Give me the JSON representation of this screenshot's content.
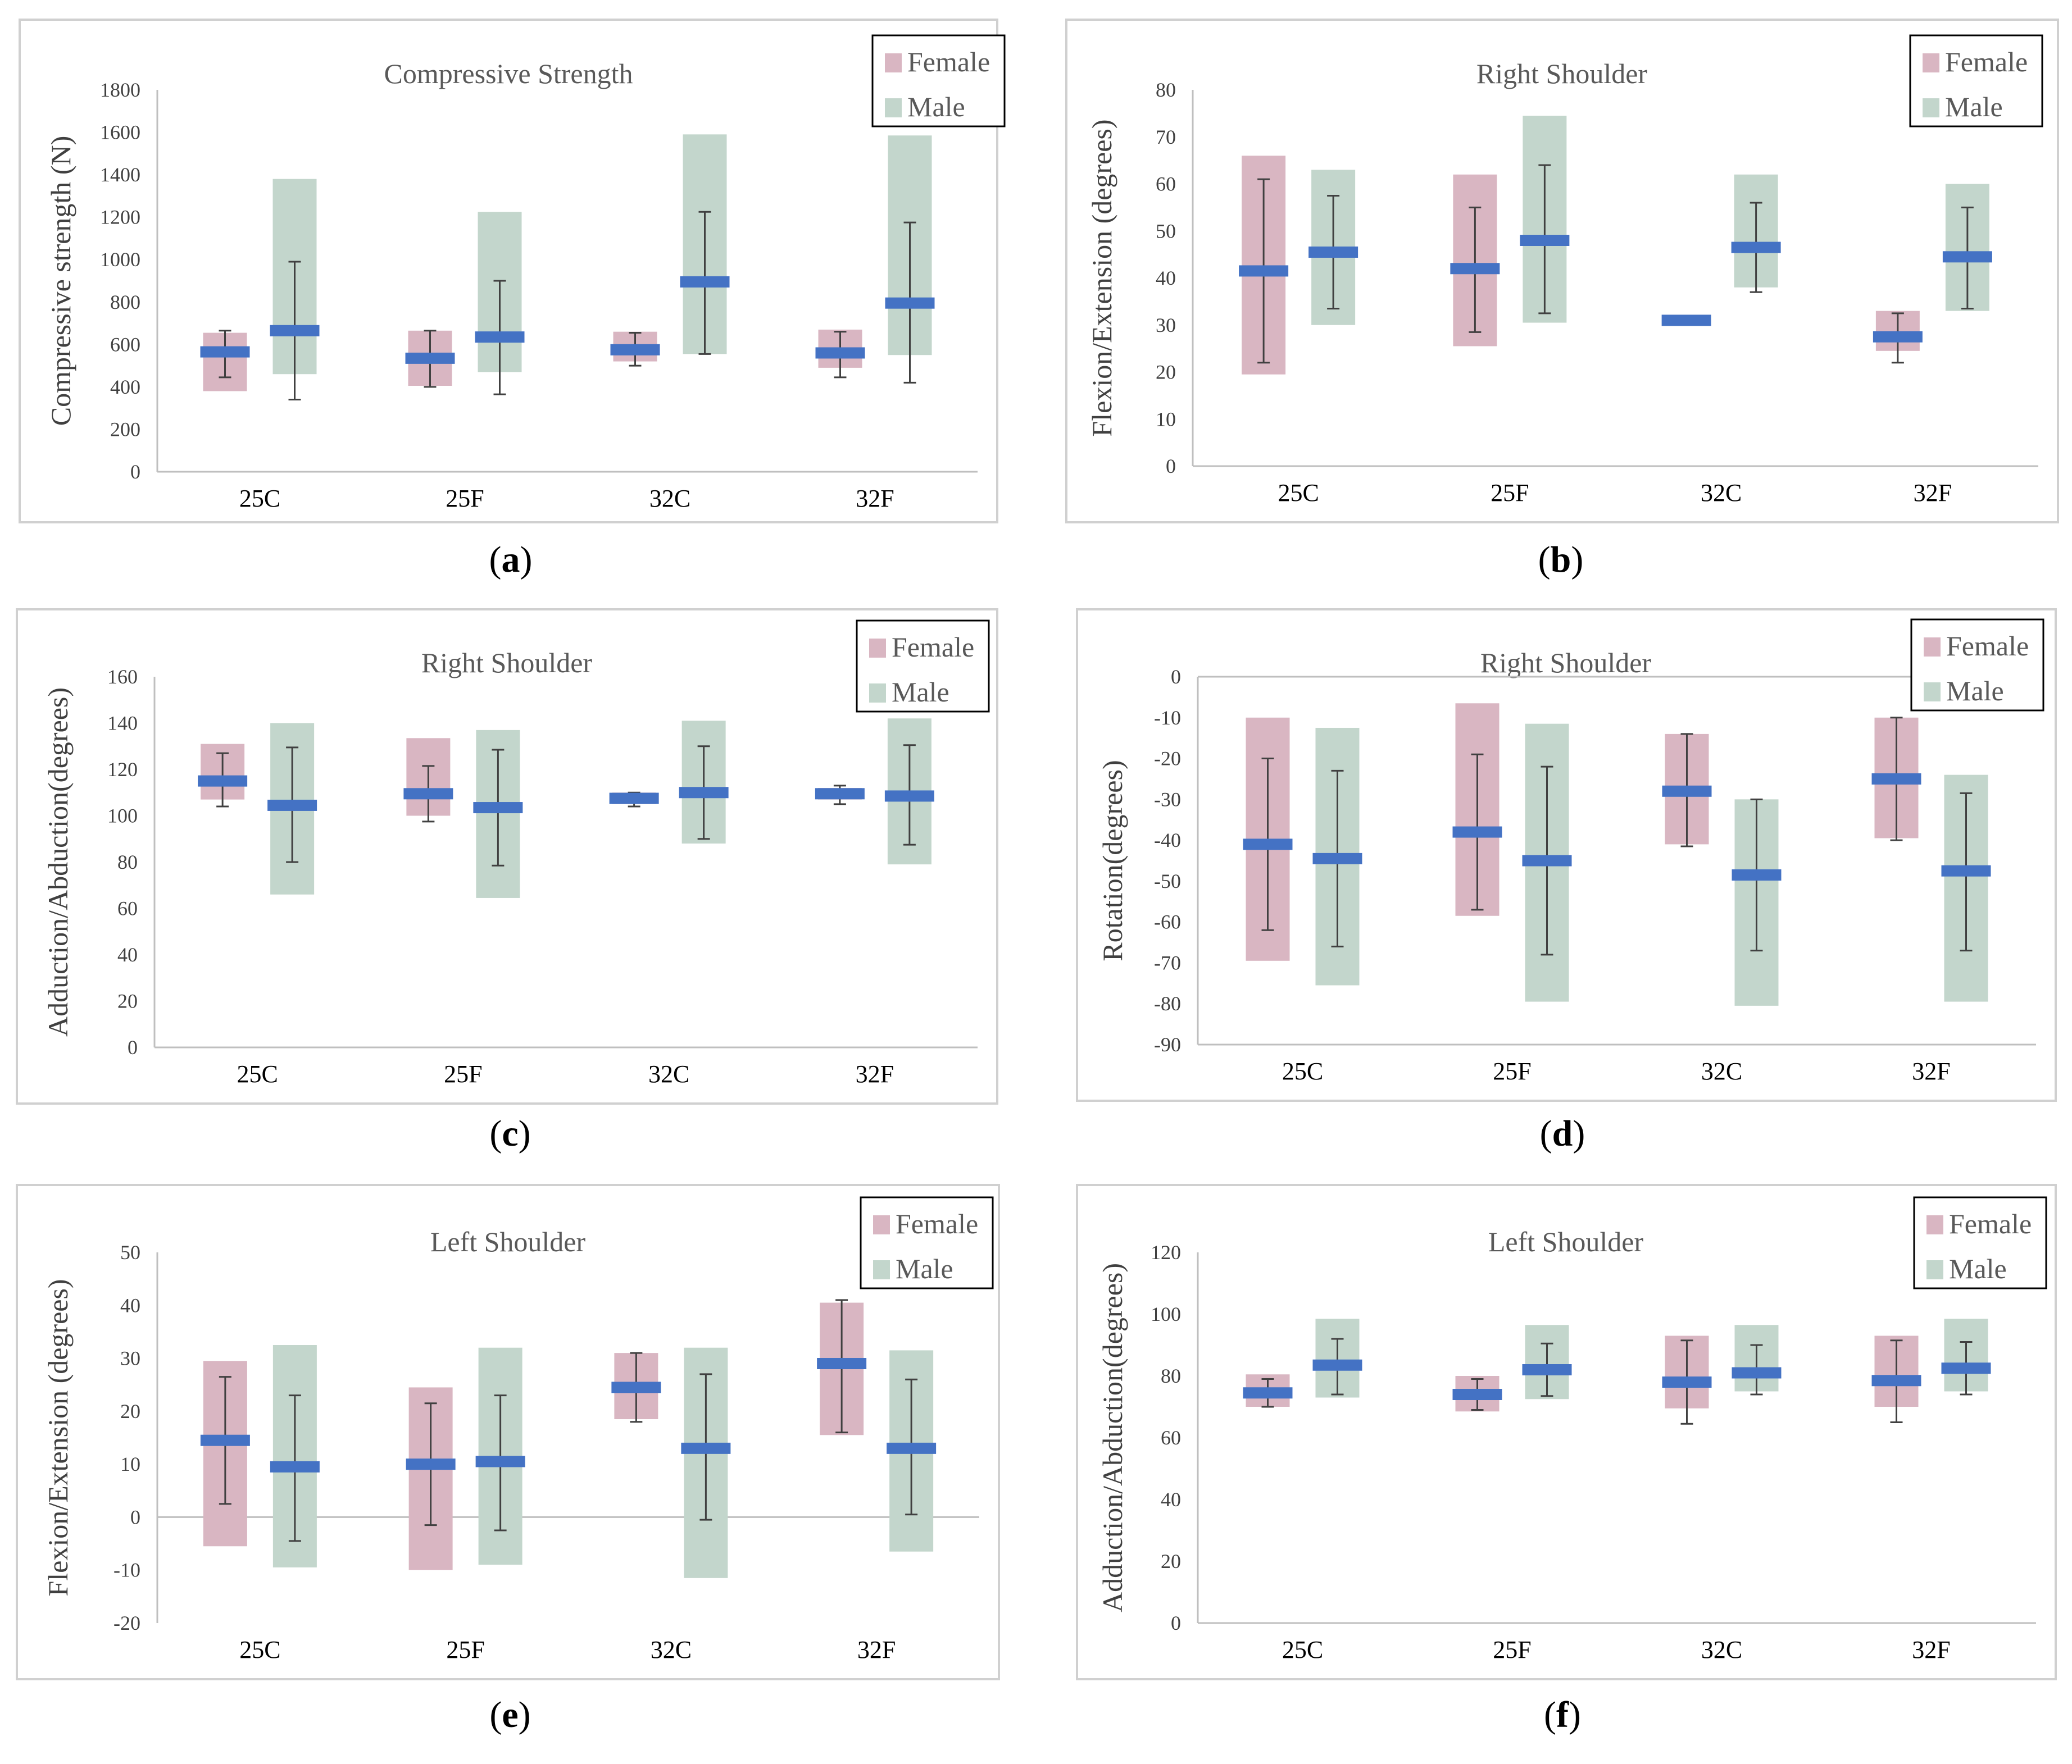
{
  "figure": {
    "colors": {
      "female": "#d9b6c2",
      "male": "#c3d6cc",
      "median": "#4472c4",
      "whisker": "#404040",
      "axis": "#bfbfbf",
      "frame": "#d0d0d0"
    },
    "legend": {
      "female": "Female",
      "male": "Male"
    }
  },
  "chart_data": [
    {
      "id": "a",
      "caption": "a",
      "type": "box-range",
      "title": "Compressive Strength",
      "ylabel": "Compressive strength (N)",
      "ylim": [
        0,
        1800
      ],
      "yticks": [
        0,
        200,
        400,
        600,
        800,
        1000,
        1200,
        1400,
        1600,
        1800
      ],
      "categories": [
        "25C",
        "25F",
        "32C",
        "32F"
      ],
      "series": [
        {
          "name": "Female",
          "color": "female",
          "values": [
            {
              "low": 380,
              "high": 655,
              "median": 565,
              "wlow": 445,
              "whigh": 665
            },
            {
              "low": 405,
              "high": 665,
              "median": 535,
              "wlow": 400,
              "whigh": 665
            },
            {
              "low": 520,
              "high": 660,
              "median": 575,
              "wlow": 500,
              "whigh": 655
            },
            {
              "low": 490,
              "high": 670,
              "median": 560,
              "wlow": 445,
              "whigh": 660
            }
          ]
        },
        {
          "name": "Male",
          "color": "male",
          "values": [
            {
              "low": 460,
              "high": 1380,
              "median": 665,
              "wlow": 340,
              "whigh": 990
            },
            {
              "low": 470,
              "high": 1225,
              "median": 635,
              "wlow": 365,
              "whigh": 900
            },
            {
              "low": 555,
              "high": 1590,
              "median": 895,
              "wlow": 555,
              "whigh": 1225
            },
            {
              "low": 550,
              "high": 1585,
              "median": 795,
              "wlow": 420,
              "whigh": 1175
            }
          ]
        }
      ]
    },
    {
      "id": "b",
      "caption": "b",
      "type": "box-range",
      "title": "Right Shoulder",
      "ylabel": "Flexion/Extension (degrees)",
      "ylim": [
        0,
        80
      ],
      "yticks": [
        0,
        10,
        20,
        30,
        40,
        50,
        60,
        70,
        80
      ],
      "categories": [
        "25C",
        "25F",
        "32C",
        "32F"
      ],
      "series": [
        {
          "name": "Female",
          "color": "female",
          "values": [
            {
              "low": 19.5,
              "high": 66,
              "median": 41.5,
              "wlow": 22,
              "whigh": 61
            },
            {
              "low": 25.5,
              "high": 62,
              "median": 42,
              "wlow": 28.5,
              "whigh": 55
            },
            {
              "low": 30.5,
              "high": 31.5,
              "median": 31,
              "wlow": 31,
              "whigh": 31
            },
            {
              "low": 24.5,
              "high": 33,
              "median": 27.5,
              "wlow": 22,
              "whigh": 32.5
            }
          ]
        },
        {
          "name": "Male",
          "color": "male",
          "values": [
            {
              "low": 30,
              "high": 63,
              "median": 45.5,
              "wlow": 33.5,
              "whigh": 57.5
            },
            {
              "low": 30.5,
              "high": 74.5,
              "median": 48,
              "wlow": 32.5,
              "whigh": 64
            },
            {
              "low": 38,
              "high": 62,
              "median": 46.5,
              "wlow": 37,
              "whigh": 56
            },
            {
              "low": 33,
              "high": 60,
              "median": 44.5,
              "wlow": 33.5,
              "whigh": 55
            }
          ]
        }
      ]
    },
    {
      "id": "c",
      "caption": "c",
      "type": "box-range",
      "title": "Right Shoulder",
      "ylabel": "Adduction/Abduction(degrees)",
      "ylim": [
        0,
        160
      ],
      "yticks": [
        0,
        20,
        40,
        60,
        80,
        100,
        120,
        140,
        160
      ],
      "categories": [
        "25C",
        "25F",
        "32C",
        "32F"
      ],
      "series": [
        {
          "name": "Female",
          "color": "female",
          "values": [
            {
              "low": 107,
              "high": 131,
              "median": 115,
              "wlow": 104,
              "whigh": 127
            },
            {
              "low": 100,
              "high": 133.5,
              "median": 109.5,
              "wlow": 97.5,
              "whigh": 121.5
            },
            {
              "low": 105,
              "high": 110,
              "median": 107.5,
              "wlow": 104,
              "whigh": 110
            },
            {
              "low": 107,
              "high": 112,
              "median": 109.5,
              "wlow": 105,
              "whigh": 113
            }
          ]
        },
        {
          "name": "Male",
          "color": "male",
          "values": [
            {
              "low": 66,
              "high": 140,
              "median": 104.5,
              "wlow": 80,
              "whigh": 129.5
            },
            {
              "low": 64.5,
              "high": 137,
              "median": 103.5,
              "wlow": 78.5,
              "whigh": 128.5
            },
            {
              "low": 88,
              "high": 141,
              "median": 110,
              "wlow": 90,
              "whigh": 130
            },
            {
              "low": 79,
              "high": 142,
              "median": 108.5,
              "wlow": 87.5,
              "whigh": 130.5
            }
          ]
        }
      ]
    },
    {
      "id": "d",
      "caption": "d",
      "type": "box-range",
      "title": "Right Shoulder",
      "ylabel": "Rotation(degrees)",
      "ylim": [
        -90,
        0
      ],
      "yticks": [
        -90,
        -80,
        -70,
        -60,
        -50,
        -40,
        -30,
        -20,
        -10,
        0
      ],
      "categories": [
        "25C",
        "25F",
        "32C",
        "32F"
      ],
      "series": [
        {
          "name": "Female",
          "color": "female",
          "values": [
            {
              "low": -69.5,
              "high": -10,
              "median": -41,
              "wlow": -62,
              "whigh": -20
            },
            {
              "low": -58.5,
              "high": -6.5,
              "median": -38,
              "wlow": -57,
              "whigh": -19
            },
            {
              "low": -41,
              "high": -14,
              "median": -28,
              "wlow": -41.5,
              "whigh": -14
            },
            {
              "low": -39.5,
              "high": -10,
              "median": -25,
              "wlow": -40,
              "whigh": -10
            }
          ]
        },
        {
          "name": "Male",
          "color": "male",
          "values": [
            {
              "low": -75.5,
              "high": -12.5,
              "median": -44.5,
              "wlow": -66,
              "whigh": -23
            },
            {
              "low": -79.5,
              "high": -11.5,
              "median": -45,
              "wlow": -68,
              "whigh": -22
            },
            {
              "low": -80.5,
              "high": -30,
              "median": -48.5,
              "wlow": -67,
              "whigh": -30
            },
            {
              "low": -79.5,
              "high": -24,
              "median": -47.5,
              "wlow": -67,
              "whigh": -28.5
            }
          ]
        }
      ]
    },
    {
      "id": "e",
      "caption": "e",
      "type": "box-range",
      "title": "Left Shoulder",
      "ylabel": "Flexion/Extension (degrees)",
      "ylim": [
        -20,
        50
      ],
      "yticks": [
        -20,
        -10,
        0,
        10,
        20,
        30,
        40,
        50
      ],
      "categories": [
        "25C",
        "25F",
        "32C",
        "32F"
      ],
      "series": [
        {
          "name": "Female",
          "color": "female",
          "values": [
            {
              "low": -5.5,
              "high": 29.5,
              "median": 14.5,
              "wlow": 2.5,
              "whigh": 26.5
            },
            {
              "low": -10,
              "high": 24.5,
              "median": 10,
              "wlow": -1.5,
              "whigh": 21.5
            },
            {
              "low": 18.5,
              "high": 31,
              "median": 24.5,
              "wlow": 18,
              "whigh": 31
            },
            {
              "low": 15.5,
              "high": 40.5,
              "median": 29,
              "wlow": 16,
              "whigh": 41
            }
          ]
        },
        {
          "name": "Male",
          "color": "male",
          "values": [
            {
              "low": -9.5,
              "high": 32.5,
              "median": 9.5,
              "wlow": -4.5,
              "whigh": 23
            },
            {
              "low": -9,
              "high": 32,
              "median": 10.5,
              "wlow": -2.5,
              "whigh": 23
            },
            {
              "low": -11.5,
              "high": 32,
              "median": 13,
              "wlow": -0.5,
              "whigh": 27
            },
            {
              "low": -6.5,
              "high": 31.5,
              "median": 13,
              "wlow": 0.5,
              "whigh": 26
            }
          ]
        }
      ]
    },
    {
      "id": "f",
      "caption": "f",
      "type": "box-range",
      "title": "Left Shoulder",
      "ylabel": "Adduction/Abduction(degrees)",
      "ylim": [
        0,
        120
      ],
      "yticks": [
        0,
        20,
        40,
        60,
        80,
        100,
        120
      ],
      "categories": [
        "25C",
        "25F",
        "32C",
        "32F"
      ],
      "series": [
        {
          "name": "Female",
          "color": "female",
          "values": [
            {
              "low": 70,
              "high": 80.5,
              "median": 74.5,
              "wlow": 70,
              "whigh": 79
            },
            {
              "low": 68.5,
              "high": 80,
              "median": 74,
              "wlow": 69,
              "whigh": 79
            },
            {
              "low": 69.5,
              "high": 93,
              "median": 78,
              "wlow": 64.5,
              "whigh": 91.5
            },
            {
              "low": 70,
              "high": 93,
              "median": 78.5,
              "wlow": 65,
              "whigh": 91.5
            }
          ]
        },
        {
          "name": "Male",
          "color": "male",
          "values": [
            {
              "low": 73,
              "high": 98.5,
              "median": 83.5,
              "wlow": 74,
              "whigh": 92
            },
            {
              "low": 72.5,
              "high": 96.5,
              "median": 82,
              "wlow": 73.5,
              "whigh": 90.5
            },
            {
              "low": 75,
              "high": 96.5,
              "median": 81,
              "wlow": 74,
              "whigh": 90
            },
            {
              "low": 75,
              "high": 98.5,
              "median": 82.5,
              "wlow": 74,
              "whigh": 91
            }
          ]
        }
      ]
    }
  ]
}
